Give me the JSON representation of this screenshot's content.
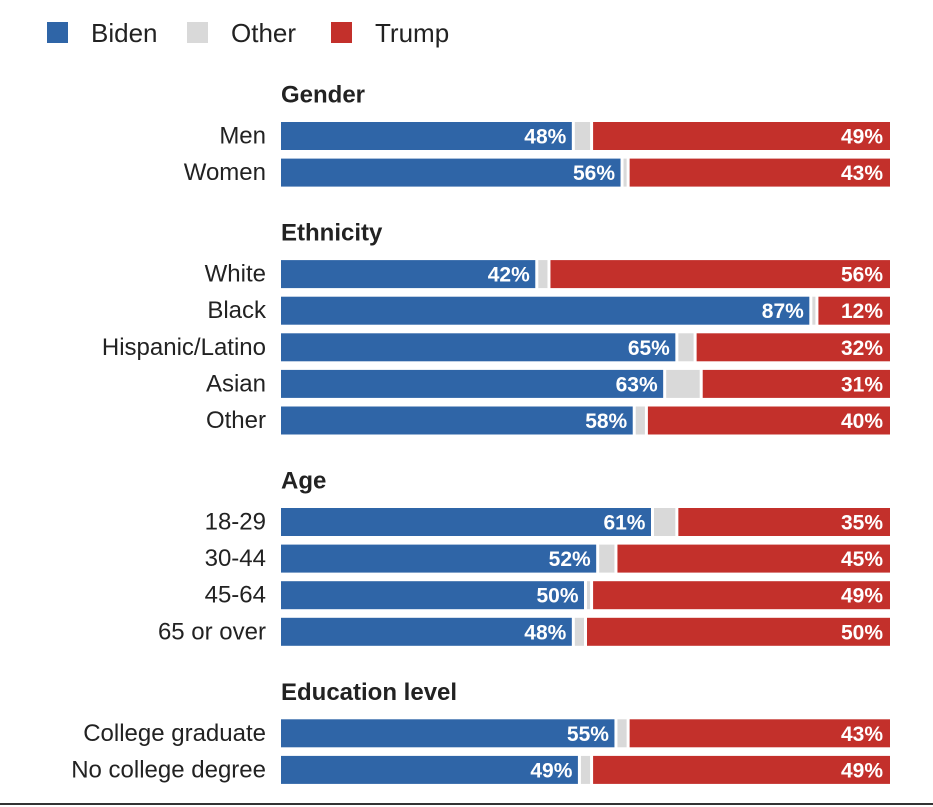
{
  "chart_data": {
    "type": "bar",
    "orientation": "horizontal",
    "stacked": true,
    "legend": "top-left",
    "xlim": [
      0,
      100
    ],
    "series": [
      {
        "name": "Biden",
        "color": "#2f65a7"
      },
      {
        "name": "Other",
        "color": "#d9d9d9"
      },
      {
        "name": "Trump",
        "color": "#c3302b"
      }
    ],
    "groups": [
      {
        "title": "Gender",
        "categories": [
          "Men",
          "Women"
        ],
        "values": [
          [
            48,
            56
          ],
          [
            3,
            1
          ],
          [
            49,
            43
          ]
        ],
        "value_labels": [
          [
            "48%",
            "56%"
          ],
          null,
          [
            "49%",
            "43%"
          ]
        ]
      },
      {
        "title": "Ethnicity",
        "categories": [
          "White",
          "Black",
          "Hispanic/Latino",
          "Asian",
          "Other"
        ],
        "values": [
          [
            42,
            87,
            65,
            63,
            58
          ],
          [
            2,
            1,
            3,
            6,
            2
          ],
          [
            56,
            12,
            32,
            31,
            40
          ]
        ],
        "value_labels": [
          [
            "42%",
            "87%",
            "65%",
            "63%",
            "58%"
          ],
          null,
          [
            "56%",
            "12%",
            "32%",
            "31%",
            "40%"
          ]
        ]
      },
      {
        "title": "Age",
        "categories": [
          "18-29",
          "30-44",
          "45-64",
          "65 or over"
        ],
        "values": [
          [
            61,
            52,
            50,
            48
          ],
          [
            4,
            3,
            1,
            2
          ],
          [
            35,
            45,
            49,
            50
          ]
        ],
        "value_labels": [
          [
            "61%",
            "52%",
            "50%",
            "48%"
          ],
          null,
          [
            "35%",
            "45%",
            "49%",
            "50%"
          ]
        ]
      },
      {
        "title": "Education level",
        "categories": [
          "College graduate",
          "No college degree"
        ],
        "values": [
          [
            55,
            49
          ],
          [
            2,
            2
          ],
          [
            43,
            49
          ]
        ],
        "value_labels": [
          [
            "55%",
            "49%"
          ],
          null,
          [
            "43%",
            "49%"
          ]
        ]
      }
    ]
  }
}
